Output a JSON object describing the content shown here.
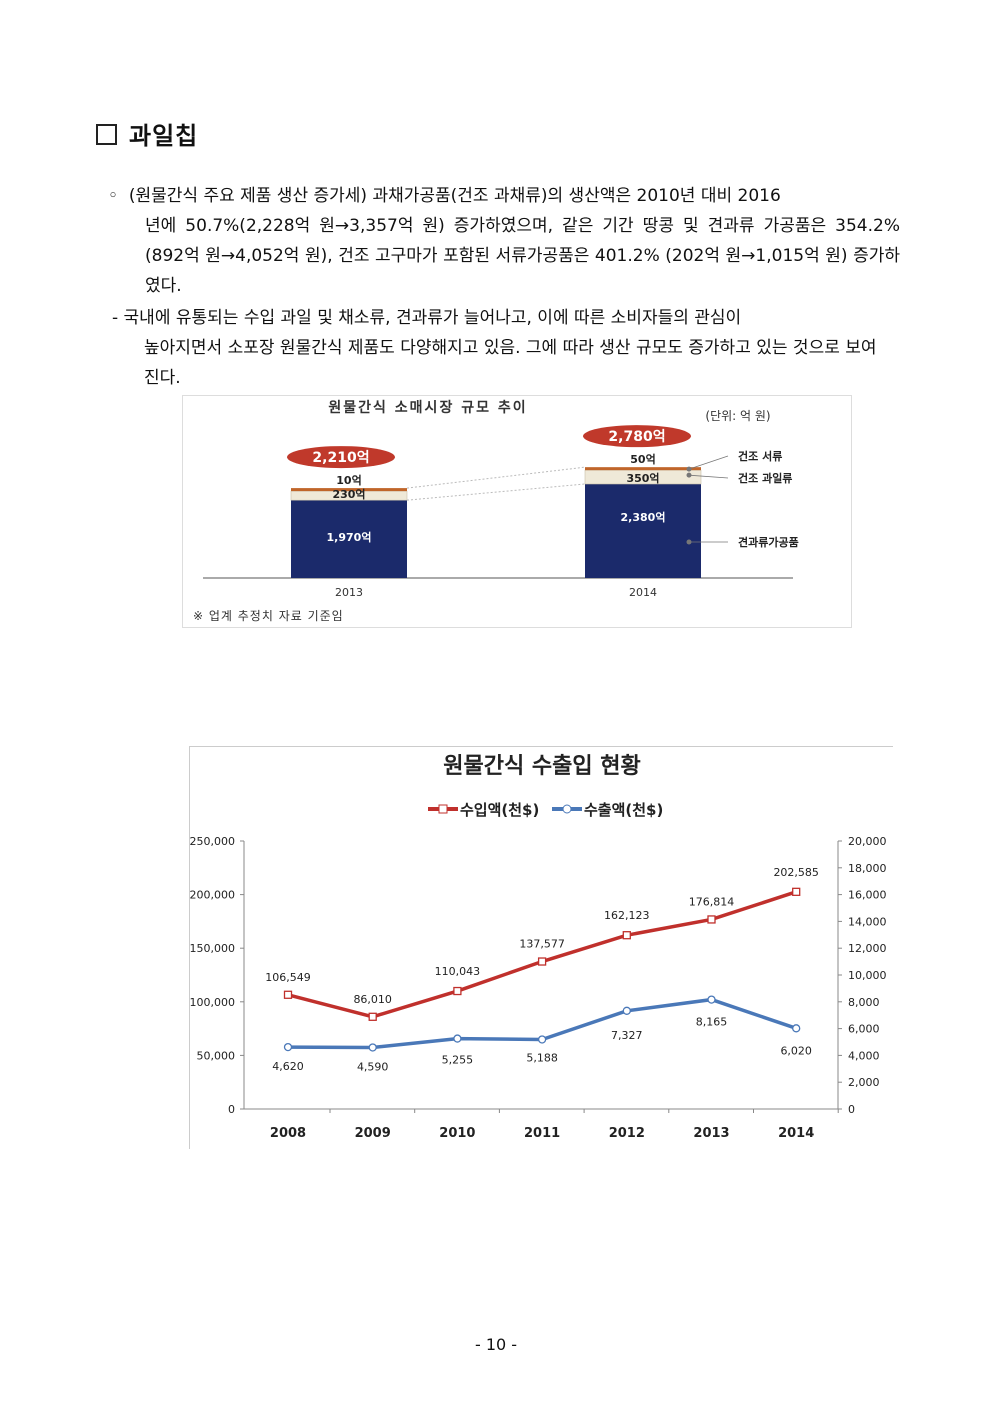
{
  "section": {
    "marker": "□",
    "title": "과일칩"
  },
  "paragraph1": {
    "bullet": "◦",
    "line1": "(원물간식 주요 제품 생산 증가세) 과채가공품(건조 과채류)의 생산액은 2010년 대비 2016",
    "rest": "년에 50.7%(2,228억 원→3,357억 원) 증가하였으며, 같은 기간 땅콩 및 견과류 가공품은 354.2% (892억 원→4,052억 원), 건조 고구마가 포함된 서류가공품은 401.2% (202억 원→1,015억 원) 증가하였다."
  },
  "paragraph2": {
    "bullet": "-",
    "line1": "국내에 유통되는 수입 과일 및 채소류, 견과류가 늘어나고, 이에 따른 소비자들의 관심이",
    "rest": "높아지면서 소포장 원물간식 제품도 다양해지고 있음. 그에 따라 생산 규모도 증가하고 있는 것으로 보여진다."
  },
  "chart_data": [
    {
      "type": "bar",
      "title": "원물간식 소매시장 규모 추이",
      "unit_label": "(단위: 억 원)",
      "categories": [
        "2013",
        "2014"
      ],
      "totals": [
        "2,210억",
        "2,780억"
      ],
      "series": [
        {
          "name": "견과류가공품",
          "values": [
            1970,
            2380
          ],
          "labels": [
            "1,970억",
            "2,380억"
          ],
          "color": "#1b2a6b"
        },
        {
          "name": "건조 과일류",
          "values": [
            230,
            350
          ],
          "labels": [
            "230억",
            "350억"
          ],
          "color": "#efe9d8"
        },
        {
          "name": "건조 서류",
          "values": [
            10,
            50
          ],
          "labels": [
            "10억",
            "50억"
          ],
          "color": "#c0652a"
        }
      ],
      "footnote": "※ 업계 추정치 자료 기준임",
      "accent": "#c0392b"
    },
    {
      "type": "line",
      "title": "원물간식 수출입 현황",
      "categories": [
        "2008",
        "2009",
        "2010",
        "2011",
        "2012",
        "2013",
        "2014"
      ],
      "series": [
        {
          "name": "수입액(천$)",
          "axis": "left",
          "values": [
            106549,
            86010,
            110043,
            137577,
            162123,
            176814,
            202585
          ],
          "labels": [
            "106,549",
            "86,010",
            "110,043",
            "137,577",
            "162,123",
            "176,814",
            "202,585"
          ],
          "color": "#c0302c"
        },
        {
          "name": "수출액(천$)",
          "axis": "right",
          "values": [
            4620,
            4590,
            5255,
            5188,
            7327,
            8165,
            6020
          ],
          "labels": [
            "4,620",
            "4,590",
            "5,255",
            "5,188",
            "7,327",
            "8,165",
            "6,020"
          ],
          "color": "#4a78b8"
        }
      ],
      "y_left": {
        "range": [
          0,
          250000
        ],
        "ticks": [
          "0",
          "50,000",
          "100,000",
          "150,000",
          "200,000",
          "250,000"
        ]
      },
      "y_right": {
        "range": [
          0,
          20000
        ],
        "ticks": [
          "0",
          "2,000",
          "4,000",
          "6,000",
          "8,000",
          "10,000",
          "12,000",
          "14,000",
          "16,000",
          "18,000",
          "20,000"
        ]
      },
      "grid": false,
      "legend": "top-center"
    }
  ],
  "page": {
    "number": "- 10 -"
  }
}
